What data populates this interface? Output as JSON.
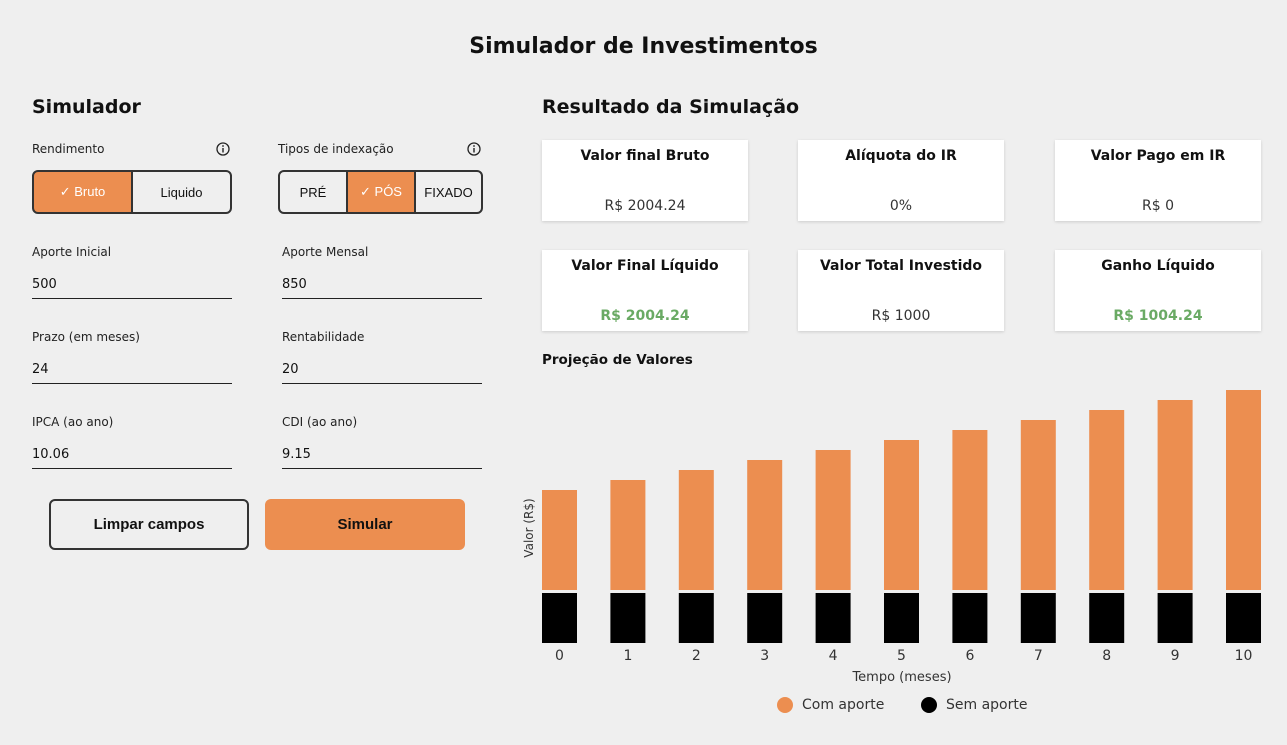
{
  "page_title": "Simulador de Investimentos",
  "simulator": {
    "title": "Simulador",
    "rendimento": {
      "label": "Rendimento",
      "options": [
        "✓ Bruto",
        "Liquido"
      ],
      "selected": 0
    },
    "indexacao": {
      "label": "Tipos de indexação",
      "options": [
        "PRÉ",
        "✓ PÓS",
        "FIXADO"
      ],
      "selected": 1
    },
    "fields": {
      "aporte_inicial": {
        "label": "Aporte Inicial",
        "value": "500"
      },
      "aporte_mensal": {
        "label": "Aporte Mensal",
        "value": "850"
      },
      "prazo": {
        "label": "Prazo (em meses)",
        "value": "24"
      },
      "rentabilidade": {
        "label": "Rentabilidade",
        "value": "20"
      },
      "ipca": {
        "label": "IPCA (ao ano)",
        "value": "10.06"
      },
      "cdi": {
        "label": "CDI (ao ano)",
        "value": "9.15"
      }
    },
    "buttons": {
      "clear": "Limpar campos",
      "simulate": "Simular"
    }
  },
  "results": {
    "title": "Resultado da Simulação",
    "cards": [
      {
        "title": "Valor final Bruto",
        "value": "R$ 2004.24",
        "highlight": false
      },
      {
        "title": "Alíquota do IR",
        "value": "0%",
        "highlight": false
      },
      {
        "title": "Valor Pago em IR",
        "value": "R$ 0",
        "highlight": false
      },
      {
        "title": "Valor Final Líquido",
        "value": "R$ 2004.24",
        "highlight": true
      },
      {
        "title": "Valor Total Investido",
        "value": "R$ 1000",
        "highlight": false
      },
      {
        "title": "Ganho Líquido",
        "value": "R$ 1004.24",
        "highlight": true
      }
    ]
  },
  "colors": {
    "accent": "#ec8e50",
    "positive": "#6aaa64",
    "dark": "#000000"
  },
  "chart_data": {
    "type": "bar",
    "title": "Projeção de Valores",
    "xlabel": "Tempo (meses)",
    "ylabel": "Valor (R$)",
    "categories": [
      "0",
      "1",
      "2",
      "3",
      "4",
      "5",
      "6",
      "7",
      "8",
      "9",
      "10"
    ],
    "series": [
      {
        "name": "Com aporte",
        "color": "#ec8e50",
        "values": [
          200,
          220,
          240,
          260,
          280,
          300,
          320,
          340,
          360,
          380,
          400
        ]
      },
      {
        "name": "Sem aporte",
        "color": "#000000",
        "values": [
          100,
          100,
          100,
          100,
          100,
          100,
          100,
          100,
          100,
          100,
          100
        ]
      }
    ],
    "stacked": true,
    "grid": false,
    "legend": "bottom"
  }
}
